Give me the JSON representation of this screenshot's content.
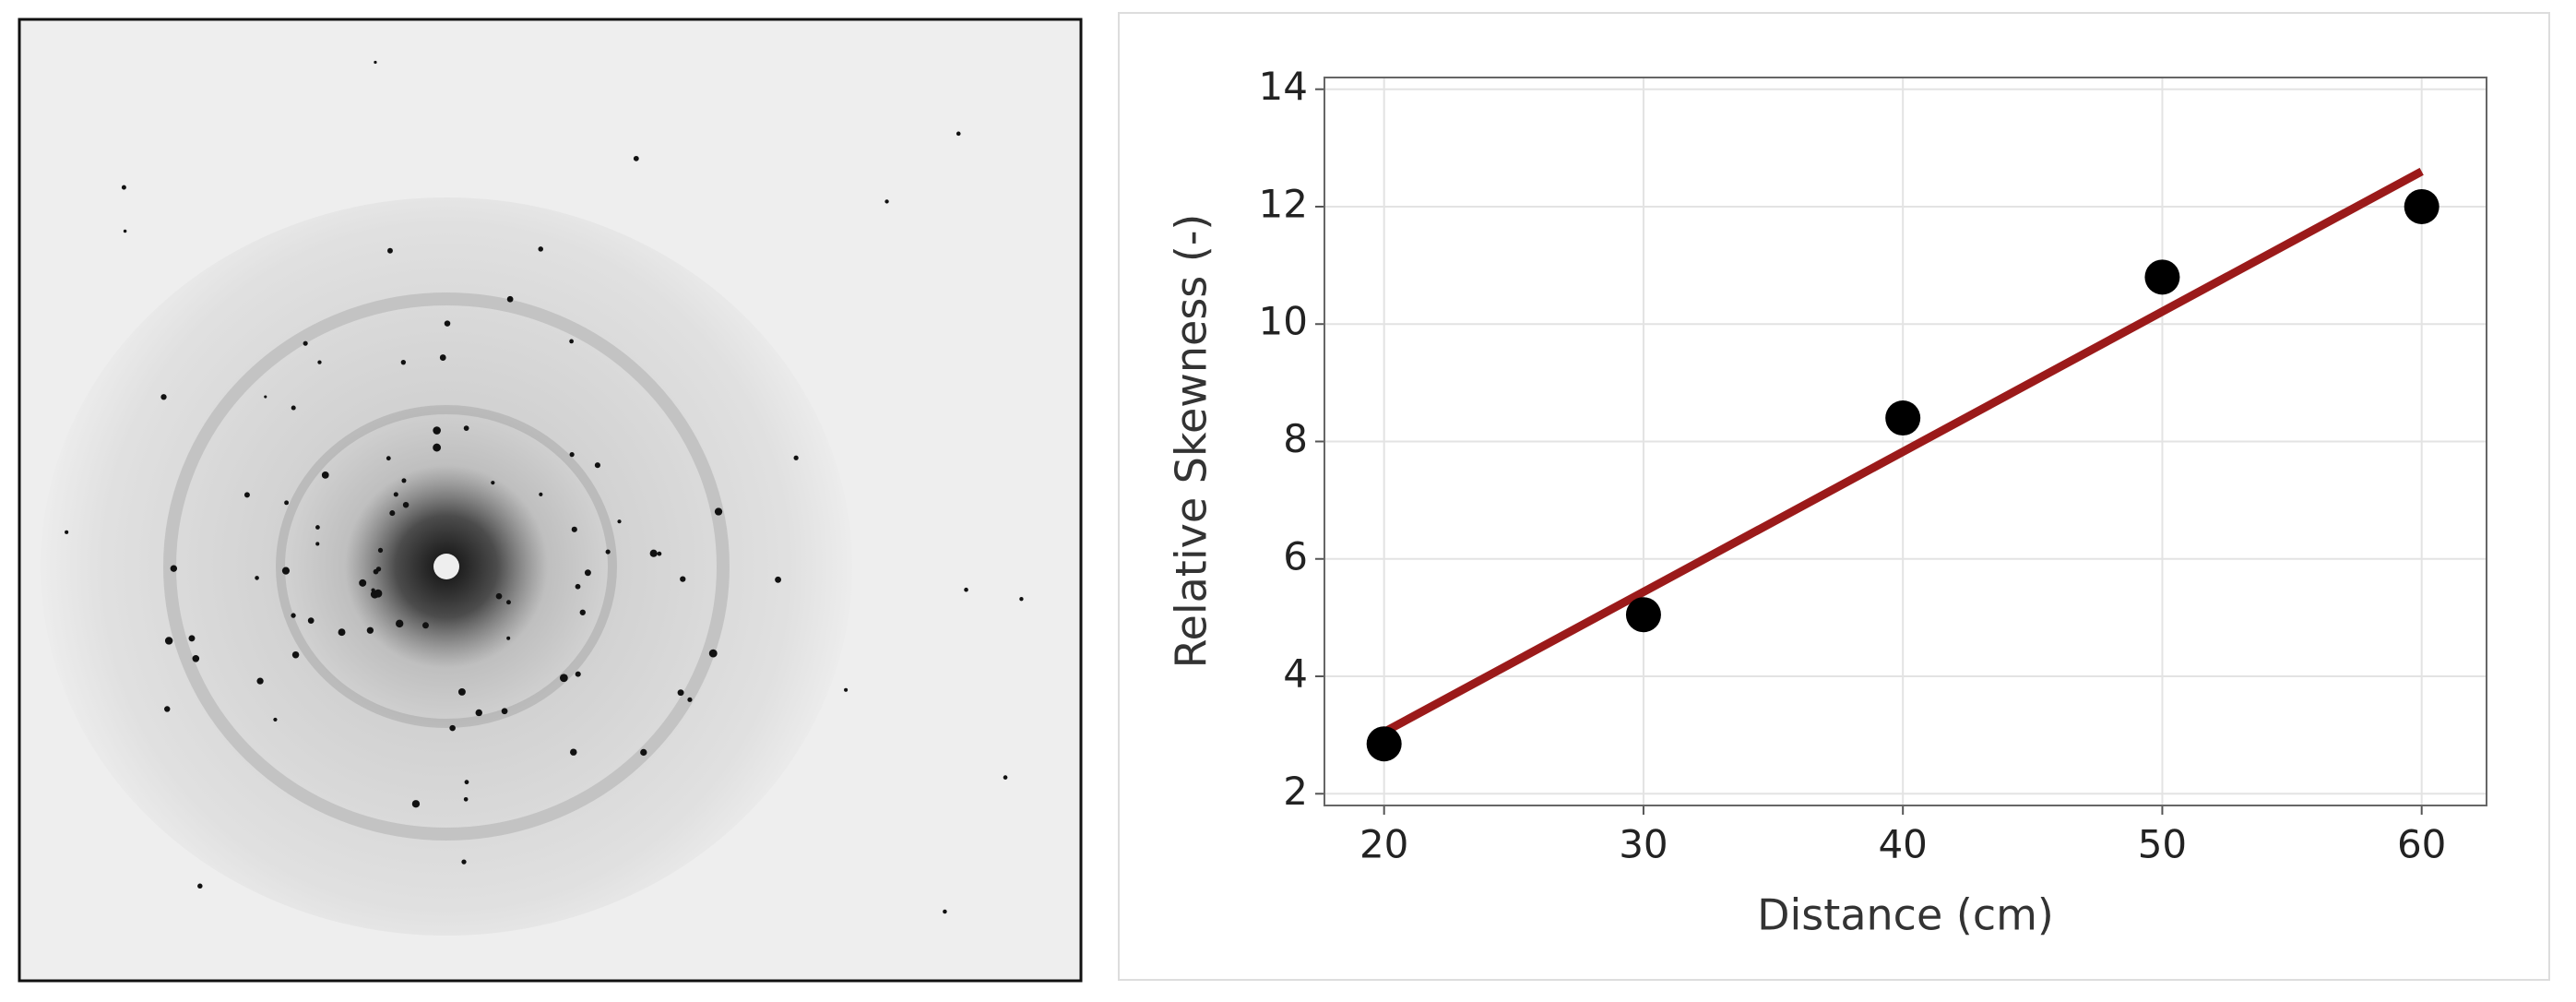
{
  "chart_data": {
    "type": "scatter",
    "x": [
      20,
      30,
      40,
      50,
      60
    ],
    "values": [
      2.85,
      5.05,
      8.4,
      10.8,
      12.0
    ],
    "color": "#000000",
    "fit": {
      "x": [
        20,
        60
      ],
      "values": [
        3.05,
        12.6
      ],
      "color": "#9b1a1a"
    },
    "xlabel": "Distance (cm)",
    "ylabel": "Relative Skewness (-)",
    "xlim": [
      17.7,
      62.5
    ],
    "xticks": [
      20,
      30,
      40,
      50,
      60
    ],
    "ylim": [
      1.8,
      14.2
    ],
    "yticks": [
      2,
      4,
      6,
      8,
      10,
      12,
      14
    ],
    "grid": true
  }
}
